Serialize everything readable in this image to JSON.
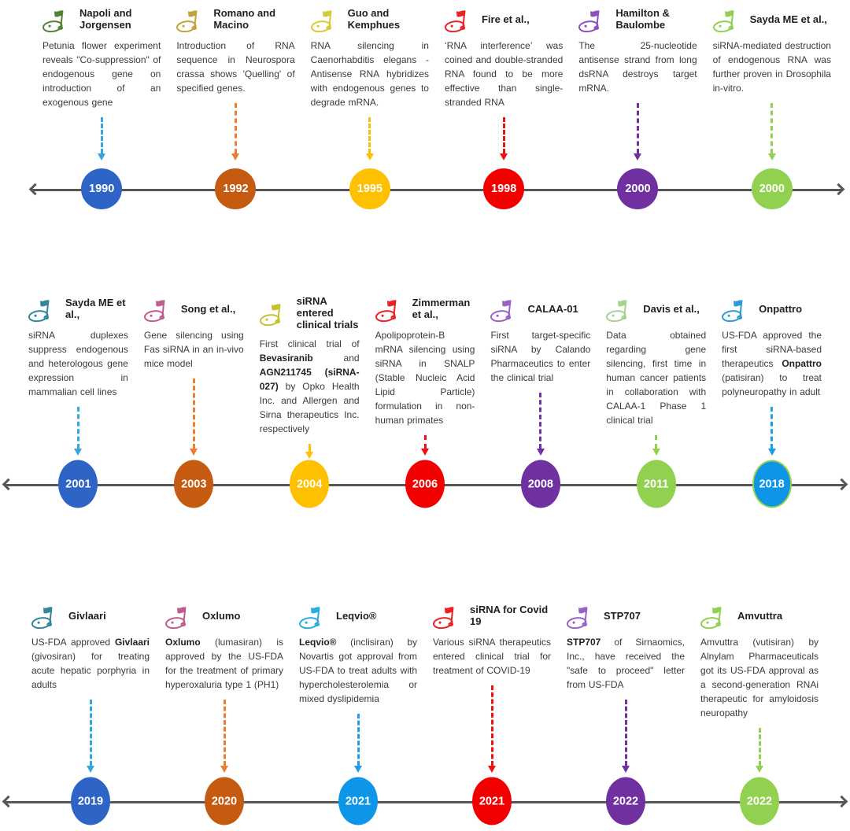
{
  "timeline": {
    "axis_color": "#565656",
    "year_text_color": "#ffffff",
    "rows": [
      {
        "milestones": [
          {
            "title": "Napoli and Jorgensen",
            "year": "1990",
            "flag_color": "#538135",
            "arrow_color": "#38A6DE",
            "circle_color": "#2E64C5",
            "body": [
              {
                "t": "Petunia flower experiment reveals \"Co-suppression\" of endogenous gene on introduction of an exogenous gene"
              }
            ]
          },
          {
            "title": "Romano and Macino",
            "year": "1992",
            "flag_color": "#C3A339",
            "arrow_color": "#ED7D31",
            "circle_color": "#C55A11",
            "body": [
              {
                "t": "Introduction of RNA sequence in Neurospora crassa shows 'Quelling' of specified genes."
              }
            ]
          },
          {
            "title": "Guo and Kemphues",
            "year": "1995",
            "flag_color": "#D9C936",
            "arrow_color": "#FFC000",
            "circle_color": "#FFC000",
            "body": [
              {
                "t": "RNA silencing in Caenorhabditis elegans - Antisense RNA hybridizes with endogenous genes to degrade mRNA."
              }
            ]
          },
          {
            "title": "Fire et al.,",
            "year": "1998",
            "flag_color": "#ED2024",
            "arrow_color": "#EE1111",
            "circle_color": "#F20000",
            "body": [
              {
                "t": "‘RNA interference’ was coined and double-stranded RNA found to be more effective than single-stranded RNA"
              }
            ]
          },
          {
            "title": "Hamilton & Baulombe",
            "year": "2000",
            "flag_color": "#8E4FC0",
            "arrow_color": "#7030A0",
            "circle_color": "#7030A0",
            "body": [
              {
                "t": "The 25-nucleotide antisense strand from long dsRNA destroys target mRNA."
              }
            ]
          },
          {
            "title": "Sayda ME et al.,",
            "year": "2000",
            "flag_color": "#92D050",
            "arrow_color": "#92D050",
            "circle_color": "#92D050",
            "body": [
              {
                "t": "siRNA-mediated destruction of endogenous RNA was further proven in Drosophila in-vitro."
              }
            ]
          }
        ]
      },
      {
        "milestones": [
          {
            "title": "Sayda ME et al.,",
            "year": "2001",
            "flag_color": "#31859C",
            "arrow_color": "#38A6DE",
            "circle_color": "#2E64C5",
            "body": [
              {
                "t": "siRNA duplexes suppress endogenous and heterologous gene expression in mammalian cell lines"
              }
            ]
          },
          {
            "title": "Song et al.,",
            "year": "2003",
            "flag_color": "#BF5B8E",
            "arrow_color": "#ED7D31",
            "circle_color": "#C55A11",
            "body": [
              {
                "t": "Gene silencing using Fas siRNA in an in-vivo mice model"
              }
            ]
          },
          {
            "title": "siRNA entered clinical trials",
            "year": "2004",
            "flag_color": "#C9C02F",
            "arrow_color": "#FFC000",
            "circle_color": "#FFC000",
            "body": [
              {
                "t": "First clinical trial of "
              },
              {
                "t": "Bevasiranib",
                "b": true
              },
              {
                "t": " and "
              },
              {
                "t": "AGN211745 (siRNA-027)",
                "b": true
              },
              {
                "t": " by Opko Health Inc. and Allergen and Sirna therapeutics Inc. respectively"
              }
            ]
          },
          {
            "title": "Zimmerman et al.,",
            "year": "2006",
            "flag_color": "#ED2024",
            "arrow_color": "#EE1111",
            "circle_color": "#F20000",
            "body": [
              {
                "t": "Apolipoprotein-B mRNA silencing using siRNA in SNALP (Stable Nucleic Acid Lipid Particle) formulation in non-human primates"
              }
            ]
          },
          {
            "title": "CALAA-01",
            "year": "2008",
            "flag_color": "#9862C8",
            "arrow_color": "#7030A0",
            "circle_color": "#7030A0",
            "body": [
              {
                "t": "First target-specific siRNA by Calando Pharmaceutics to enter the clinical trial"
              }
            ]
          },
          {
            "title": "Davis et al.,",
            "year": "2011",
            "flag_color": "#A9D18E",
            "arrow_color": "#92D050",
            "circle_color": "#92D050",
            "body": [
              {
                "t": "Data obtained regarding gene silencing, first time in human cancer patients in collaboration with CALAA-1 Phase 1 clinical trial"
              }
            ]
          },
          {
            "title": "Onpattro",
            "year": "2018",
            "flag_color": "#2E9BD6",
            "arrow_color": "#1F9CE8",
            "circle_color": "#0D96E8",
            "circle_ring": "#92D050",
            "body": [
              {
                "t": "US-FDA approved the first siRNA-based therapeutics "
              },
              {
                "t": "Onpattro",
                "b": true
              },
              {
                "t": " (patisiran) to treat polyneuropathy in adult"
              }
            ]
          }
        ]
      },
      {
        "milestones": [
          {
            "title": "Givlaari",
            "year": "2019",
            "flag_color": "#31859C",
            "arrow_color": "#38A6DE",
            "circle_color": "#2E64C5",
            "body": [
              {
                "t": "US-FDA approved "
              },
              {
                "t": "Givlaari",
                "b": true
              },
              {
                "t": " (givosiran) for treating acute hepatic porphyria in adults"
              }
            ]
          },
          {
            "title": "Oxlumo",
            "year": "2020",
            "flag_color": "#BF5B8E",
            "arrow_color": "#ED7D31",
            "circle_color": "#C55A11",
            "body": [
              {
                "t": "Oxlumo",
                "b": true
              },
              {
                "t": " (lumasiran) is approved by the US-FDA for the treatment of primary hyperoxaluria type 1 (PH1)"
              }
            ]
          },
          {
            "title": "Leqvio®",
            "year": "2021",
            "flag_color": "#29ABE2",
            "arrow_color": "#1F9CE8",
            "circle_color": "#0D96E8",
            "body": [
              {
                "t": "Leqvio®",
                "b": true
              },
              {
                "t": " (inclisiran) by Novartis got approval from US-FDA to treat adults with hypercholesterolemia or mixed dyslipidemia"
              }
            ]
          },
          {
            "title": "siRNA for Covid 19",
            "year": "2021",
            "flag_color": "#ED2024",
            "arrow_color": "#EE1111",
            "circle_color": "#F20000",
            "body": [
              {
                "t": "Various siRNA therapeutics entered clinical trial for treatment of COVID-19"
              }
            ]
          },
          {
            "title": "STP707",
            "year": "2022",
            "flag_color": "#9862C8",
            "arrow_color": "#7030A0",
            "circle_color": "#7030A0",
            "body": [
              {
                "t": "STP707",
                "b": true
              },
              {
                "t": " of Sirnaomics, Inc., have received the \"safe to proceed\" letter from US-FDA"
              }
            ]
          },
          {
            "title": "Amvuttra",
            "year": "2022",
            "flag_color": "#92D050",
            "arrow_color": "#92D050",
            "circle_color": "#92D050",
            "body": [
              {
                "t": "Amvuttra (vutisiran) by Alnylam Pharmaceuticals got its US-FDA approval as a second-generation RNAi therapeutic for amyloidosis neuropathy"
              }
            ]
          }
        ]
      }
    ]
  }
}
